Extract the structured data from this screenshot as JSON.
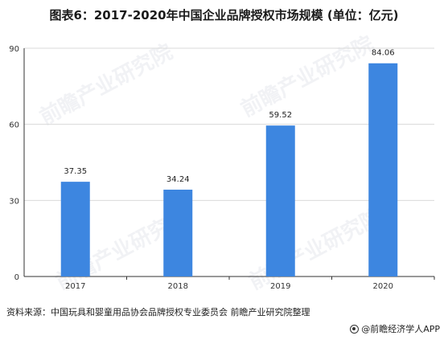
{
  "chart_data": {
    "type": "bar",
    "title": "图表6：2017-2020年中国企业品牌授权市场规模 (单位：亿元)",
    "categories": [
      "2017",
      "2018",
      "2019",
      "2020"
    ],
    "series": [
      {
        "values": [
          37.35,
          34.24,
          59.52,
          84.06
        ]
      }
    ],
    "data_labels": [
      "37.35",
      "34.24",
      "59.52",
      "84.06"
    ],
    "yticks": [
      "0",
      "30",
      "60",
      "90"
    ],
    "ylim": [
      0,
      90
    ],
    "grid": true,
    "legend": "none",
    "bar_color": "#3d86e0"
  },
  "footer": {
    "source": "资料来源：中国玩具和婴童用品协会品牌授权专业委员会 前瞻产业研究院整理",
    "brand": "@前瞻经济学人APP"
  },
  "watermark_text": "前瞻产业研究院"
}
